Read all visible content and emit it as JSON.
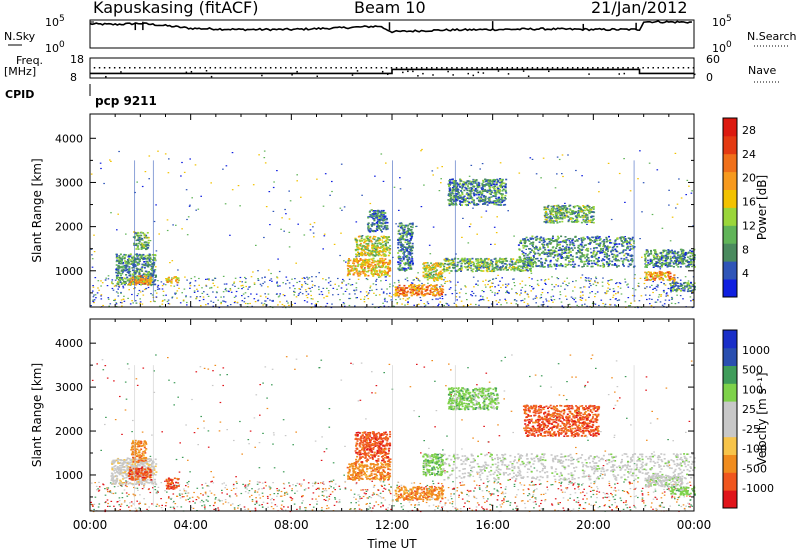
{
  "header": {
    "station": "Kapuskasing (fitACF)",
    "beam": "Beam 10",
    "date": "21/Jan/2012"
  },
  "labels": {
    "nsky": "N.Sky",
    "nsearch": "N.Search",
    "freq_line1": "Freq.",
    "freq_line2": "[MHz]",
    "nave": "Nave",
    "cpid": "CPID",
    "mode": "pcp 9211"
  },
  "colors": {
    "power": [
      "#1020e0",
      "#2f55b8",
      "#4a8a5e",
      "#60b458",
      "#9ad63a",
      "#f2c200",
      "#f79a1e",
      "#f0701a",
      "#e43a12",
      "#dc1a10"
    ],
    "velocity": [
      "#e0141a",
      "#f0561e",
      "#f08c1e",
      "#f7c44a",
      "#c8c8c8",
      "#c8c8c8",
      "#7ed24a",
      "#3f9c5a",
      "#2a4fb0",
      "#1a2fc8"
    ],
    "frame": "#000000"
  },
  "chart_data": [
    {
      "type": "line",
      "name": "noise-panel",
      "series": [
        {
          "name": "N.Sky",
          "x": [
            "00:00",
            "01:00",
            "02:00",
            "03:00",
            "04:00",
            "06:00",
            "08:00",
            "10:00",
            "11:30",
            "12:00",
            "14:00",
            "16:00",
            "18:00",
            "20:00",
            "21:50",
            "22:00",
            "24:00"
          ],
          "y_log10": [
            4.3,
            4.2,
            4.4,
            4.0,
            3.5,
            3.3,
            3.3,
            3.6,
            3.9,
            2.9,
            3.2,
            3.3,
            3.4,
            3.3,
            3.3,
            4.7,
            4.6
          ]
        }
      ],
      "yticks": [
        "10^0",
        "10^5"
      ],
      "y2ticks": [
        "10^0",
        "10^5"
      ],
      "ylabel": "N.Sky",
      "y2label": "N.Search",
      "ylim_log10": [
        0,
        5
      ]
    },
    {
      "type": "line",
      "name": "frequency-panel",
      "series": [
        {
          "name": "Freq",
          "x": [
            "00:00",
            "12:00",
            "12:00",
            "21:50",
            "21:50",
            "24:00"
          ],
          "y": [
            10.3,
            10.3,
            12.3,
            12.3,
            10.3,
            10.3
          ]
        },
        {
          "name": "Nave",
          "x": [
            "00:00",
            "24:00"
          ],
          "y": [
            30,
            32
          ]
        }
      ],
      "yticks": [
        8,
        18
      ],
      "y2ticks": [
        0,
        60
      ],
      "ylabel": "Freq. [MHz]",
      "y2label": "Nave",
      "ylim": [
        8,
        18
      ],
      "y2lim": [
        0,
        60
      ]
    },
    {
      "type": "heatmap",
      "name": "power-panel",
      "x_range_hours": [
        0,
        24
      ],
      "y_range_km": [
        180,
        4550
      ],
      "yticks": [
        1000,
        2000,
        3000,
        4000
      ],
      "ylabel": "Slant Range [km]",
      "colorbar": {
        "label": "Power [dB]",
        "ticks": [
          4,
          8,
          12,
          16,
          20,
          24,
          28
        ],
        "range": [
          0,
          30
        ]
      },
      "regions": [
        {
          "t": [
            1.0,
            2.6
          ],
          "r": [
            700,
            1400
          ],
          "level": 8
        },
        {
          "t": [
            1.5,
            2.4
          ],
          "r": [
            700,
            900
          ],
          "level": 20
        },
        {
          "t": [
            1.7,
            2.3
          ],
          "r": [
            1500,
            1900
          ],
          "level": 9
        },
        {
          "t": [
            3.0,
            3.5
          ],
          "r": [
            750,
            880
          ],
          "level": 18
        },
        {
          "t": [
            10.2,
            11.9
          ],
          "r": [
            900,
            1300
          ],
          "level": 18
        },
        {
          "t": [
            10.5,
            11.9
          ],
          "r": [
            1350,
            1800
          ],
          "level": 14
        },
        {
          "t": [
            11.0,
            11.8
          ],
          "r": [
            1900,
            2400
          ],
          "level": 6
        },
        {
          "t": [
            12.1,
            14.0
          ],
          "r": [
            450,
            700
          ],
          "level": 22
        },
        {
          "t": [
            12.2,
            12.8
          ],
          "r": [
            1000,
            2100
          ],
          "level": 6
        },
        {
          "t": [
            13.2,
            14.0
          ],
          "r": [
            800,
            1200
          ],
          "level": 14
        },
        {
          "t": [
            14.0,
            17.5
          ],
          "r": [
            1000,
            1300
          ],
          "level": 10
        },
        {
          "t": [
            14.2,
            16.5
          ],
          "r": [
            2500,
            3100
          ],
          "level": 7
        },
        {
          "t": [
            17.0,
            21.6
          ],
          "r": [
            1100,
            1800
          ],
          "level": 7
        },
        {
          "t": [
            18.0,
            20.0
          ],
          "r": [
            2100,
            2500
          ],
          "level": 10
        },
        {
          "t": [
            22.0,
            23.2
          ],
          "r": [
            800,
            1000
          ],
          "level": 20
        },
        {
          "t": [
            22.0,
            24.0
          ],
          "r": [
            1100,
            1500
          ],
          "level": 7
        },
        {
          "t": [
            23.0,
            24.0
          ],
          "r": [
            550,
            750
          ],
          "level": 7
        }
      ]
    },
    {
      "type": "heatmap",
      "name": "velocity-panel",
      "x_range_hours": [
        0,
        24
      ],
      "y_range_km": [
        180,
        4550
      ],
      "yticks": [
        1000,
        2000,
        3000,
        4000
      ],
      "ylabel": "Slant Range [km]",
      "colorbar": {
        "label": "Velocity [m s^-1]",
        "ticks": [
          "1000",
          "500",
          "100",
          "25",
          "-25",
          "-100",
          "-500",
          "-1000"
        ]
      },
      "regions": [
        {
          "t": [
            0.8,
            2.6
          ],
          "r": [
            800,
            1400
          ],
          "level": "-25"
        },
        {
          "t": [
            1.5,
            2.4
          ],
          "r": [
            900,
            1200
          ],
          "level": "-500"
        },
        {
          "t": [
            1.6,
            2.2
          ],
          "r": [
            1300,
            1800
          ],
          "level": "-100"
        },
        {
          "t": [
            3.0,
            3.5
          ],
          "r": [
            700,
            950
          ],
          "level": "-500"
        },
        {
          "t": [
            10.2,
            11.9
          ],
          "r": [
            900,
            1300
          ],
          "level": "-100"
        },
        {
          "t": [
            10.5,
            11.9
          ],
          "r": [
            1300,
            2000
          ],
          "level": "-500"
        },
        {
          "t": [
            12.1,
            14.0
          ],
          "r": [
            450,
            750
          ],
          "level": "-100"
        },
        {
          "t": [
            13.2,
            14.0
          ],
          "r": [
            1000,
            1500
          ],
          "level": "100"
        },
        {
          "t": [
            14.0,
            24.0
          ],
          "r": [
            900,
            1500
          ],
          "level": "25"
        },
        {
          "t": [
            14.2,
            16.2
          ],
          "r": [
            2500,
            3000
          ],
          "level": "100"
        },
        {
          "t": [
            17.2,
            20.2
          ],
          "r": [
            1900,
            2600
          ],
          "level": "-500"
        },
        {
          "t": [
            22.0,
            23.5
          ],
          "r": [
            750,
            1000
          ],
          "level": "25"
        },
        {
          "t": [
            23.0,
            24.0
          ],
          "r": [
            550,
            750
          ],
          "level": "100"
        }
      ]
    }
  ],
  "xaxis": {
    "ticks": [
      "00:00",
      "04:00",
      "08:00",
      "12:00",
      "16:00",
      "20:00",
      "00:00"
    ],
    "label": "Time UT"
  }
}
